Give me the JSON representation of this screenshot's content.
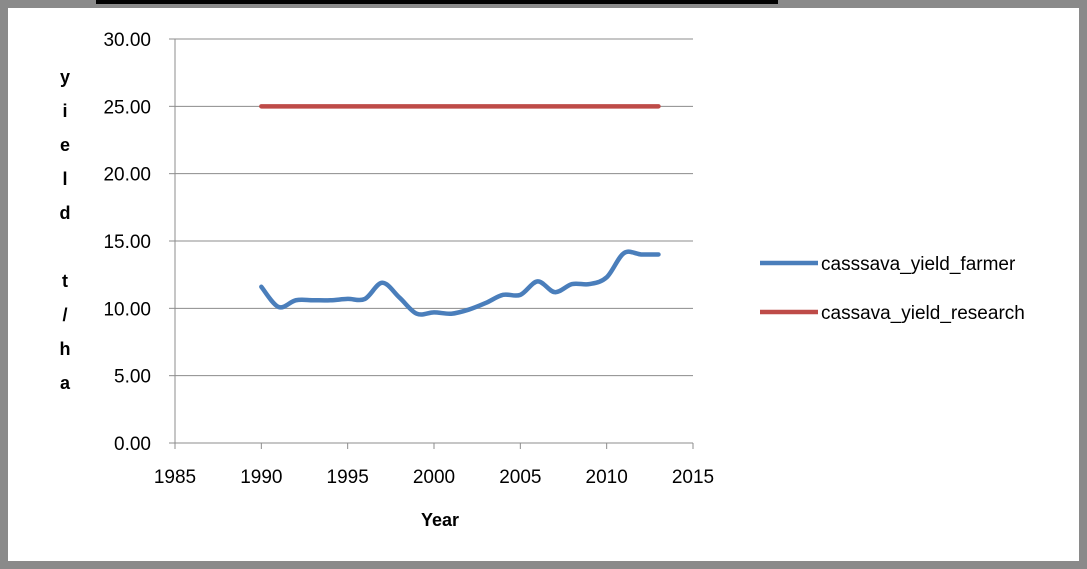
{
  "chart_data": {
    "type": "line",
    "title": "",
    "xlabel": "Year",
    "ylabel": "yield t/ha",
    "xlim": [
      1985,
      2015
    ],
    "ylim": [
      0,
      30
    ],
    "x_ticks": [
      "1985",
      "1990",
      "1995",
      "2000",
      "2005",
      "2010",
      "2015"
    ],
    "y_ticks": [
      "0.00",
      "5.00",
      "10.00",
      "15.00",
      "20.00",
      "25.00",
      "30.00"
    ],
    "grid": "horizontal",
    "legend_position": "right",
    "series": [
      {
        "name": "casssava_yield_farmer",
        "color": "#4a7ebb",
        "x": [
          1990,
          1991,
          1992,
          1993,
          1994,
          1995,
          1996,
          1997,
          1998,
          1999,
          2000,
          2001,
          2002,
          2003,
          2004,
          2005,
          2006,
          2007,
          2008,
          2009,
          2010,
          2011,
          2012,
          2013
        ],
        "y": [
          11.6,
          10.1,
          10.6,
          10.6,
          10.6,
          10.7,
          10.7,
          11.9,
          10.8,
          9.6,
          9.7,
          9.6,
          9.9,
          10.4,
          11.0,
          11.0,
          12.0,
          11.2,
          11.8,
          11.8,
          12.3,
          14.1,
          14.0,
          14.0
        ]
      },
      {
        "name": "cassava_yield_research",
        "color": "#be4b48",
        "x": [
          1990,
          2013
        ],
        "y": [
          25.0,
          25.0
        ]
      }
    ]
  }
}
